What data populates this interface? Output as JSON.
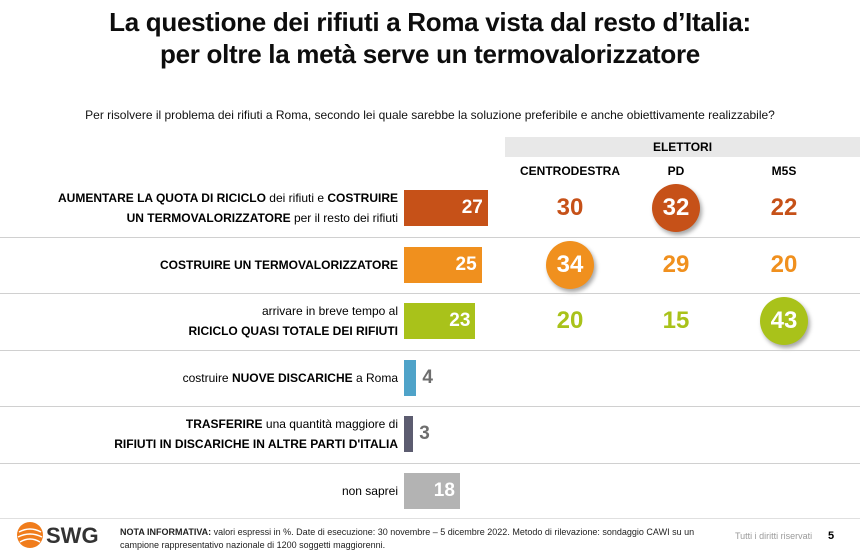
{
  "header": {
    "title_line1": "La questione dei rifiuti a Roma vista dal resto d’Italia:",
    "title_line2": "per oltre la metà serve un termovalorizzatore",
    "question": "Per risolvere il problema dei rifiuti a Roma, secondo lei quale sarebbe la soluzione preferibile e anche obiettivamente realizzabile?"
  },
  "chart_data": {
    "type": "bar",
    "title": "La questione dei rifiuti a Roma vista dal resto d’Italia: per oltre la metà serve un termovalorizzatore",
    "subtitle": "Per risolvere il problema dei rifiuti a Roma, secondo lei quale sarebbe la soluzione preferibile e anche obiettivamente realizzabile?",
    "group_label": "ELETTORI",
    "columns": [
      "CENTRODESTRA",
      "PD",
      "M5S"
    ],
    "rows": [
      {
        "label_lines": [
          [
            {
              "t": "AUMENTARE LA QUOTA DI RICICLO",
              "b": true
            },
            {
              "t": " dei rifiuti e ",
              "b": false
            },
            {
              "t": "COSTRUIRE",
              "b": true
            }
          ],
          [
            {
              "t": "UN TERMOVALORIZZATORE",
              "b": true
            },
            {
              "t": " per il resto dei rifiuti",
              "b": false
            }
          ]
        ],
        "total": 27,
        "color": "#c65118",
        "electorate": [
          30,
          32,
          22
        ],
        "highlight": 1
      },
      {
        "label_lines": [
          [
            {
              "t": "COSTRUIRE UN TERMOVALORIZZATORE",
              "b": true
            }
          ]
        ],
        "total": 25,
        "color": "#f0901e",
        "electorate": [
          34,
          29,
          20
        ],
        "highlight": 0
      },
      {
        "label_lines": [
          [
            {
              "t": "arrivare in breve tempo al",
              "b": false
            }
          ],
          [
            {
              "t": "RICICLO QUASI TOTALE DEI RIFIUTI",
              "b": true
            }
          ]
        ],
        "total": 23,
        "color": "#a9c21a",
        "electorate": [
          20,
          15,
          43
        ],
        "highlight": 2
      },
      {
        "label_lines": [
          [
            {
              "t": "costruire ",
              "b": false
            },
            {
              "t": "NUOVE DISCARICHE",
              "b": true
            },
            {
              "t": " a Roma",
              "b": false
            }
          ]
        ],
        "total": 4,
        "color": "#4fa3c9",
        "electorate": [],
        "highlight": -1
      },
      {
        "label_lines": [
          [
            {
              "t": "TRASFERIRE",
              "b": true
            },
            {
              "t": " una quantità maggiore di",
              "b": false
            }
          ],
          [
            {
              "t": "RIFIUTI IN DISCARICHE IN ALTRE PARTI D'ITALIA",
              "b": true
            }
          ]
        ],
        "total": 3,
        "color": "#5c5c70",
        "electorate": [],
        "highlight": -1
      },
      {
        "label_lines": [
          [
            {
              "t": "non saprei",
              "b": false
            }
          ]
        ],
        "total": 18,
        "color": "#b3b3b3",
        "electorate": [],
        "highlight": -1
      }
    ],
    "unit": "%"
  },
  "footer": {
    "note_label": "NOTA INFORMATIVA:",
    "note_text": " valori espressi in %. Date di esecuzione: 30 novembre – 5 dicembre 2022. Metodo di rilevazione: sondaggio CAWI su un campione rappresentativo nazionale di 1200 soggetti maggiorenni.",
    "rights": "Tutti i diritti riservati",
    "page": "5",
    "brand": "SWG",
    "brand_color": "#f07c1b"
  }
}
